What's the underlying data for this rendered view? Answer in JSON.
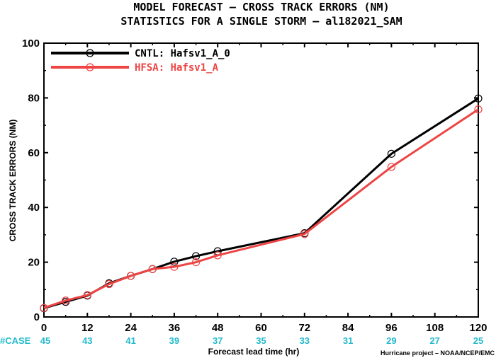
{
  "colors": {
    "cntl": "#000000",
    "hfsa": "#ee4444",
    "case": "#22bbcc",
    "axis": "#000000"
  },
  "chart_data": {
    "type": "line",
    "title": [
      "MODEL FORECAST – CROSS TRACK ERRORS (NM)",
      "STATISTICS FOR A SINGLE STORM – al182021_SAM"
    ],
    "xlabel": "Forecast lead time (hr)",
    "ylabel": "CROSS TRACK ERRORS (NM)",
    "xlim": [
      0,
      120
    ],
    "ylim": [
      0,
      100
    ],
    "xticks": [
      0,
      12,
      24,
      36,
      48,
      60,
      72,
      84,
      96,
      108,
      120
    ],
    "yticks": [
      0,
      20,
      40,
      60,
      80,
      100
    ],
    "grid": false,
    "legend_position": "top-left",
    "case_prefix": "#CASE",
    "case_x": [
      0,
      12,
      24,
      36,
      48,
      60,
      72,
      84,
      96,
      108,
      120
    ],
    "case_counts": [
      45,
      43,
      41,
      39,
      37,
      35,
      33,
      31,
      29,
      27,
      25
    ],
    "credit": "Hurricane project – NOAA/NCEP/EMC",
    "series": [
      {
        "name": "CNTL: Hafsv1_A_0",
        "color": "#000000",
        "x": [
          0,
          6,
          12,
          18,
          24,
          30,
          36,
          42,
          48,
          72,
          96,
          120
        ],
        "y": [
          3.2,
          5.5,
          7.8,
          12.3,
          15.0,
          17.5,
          20.2,
          22.2,
          24.0,
          30.6,
          59.6,
          79.8
        ]
      },
      {
        "name": "HFSA: Hafsv1_A",
        "color": "#ee4444",
        "x": [
          0,
          6,
          12,
          18,
          24,
          30,
          36,
          42,
          48,
          72,
          96,
          120
        ],
        "y": [
          3.3,
          6.0,
          8.0,
          12.0,
          15.0,
          17.5,
          18.3,
          20.0,
          22.5,
          30.3,
          54.8,
          75.8
        ]
      }
    ]
  }
}
